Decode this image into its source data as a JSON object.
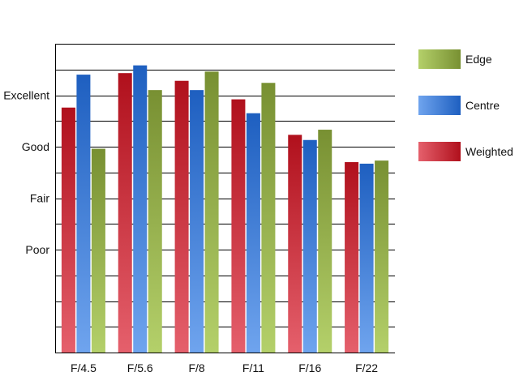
{
  "chart_data": {
    "type": "bar",
    "categories": [
      "F/4.5",
      "F/5.6",
      "F/8",
      "F/11",
      "F/16",
      "F/22"
    ],
    "series": [
      {
        "name": "Weighted",
        "values": [
          3.76,
          4.43,
          4.28,
          3.92,
          3.23,
          2.7
        ],
        "color_light": "#e5606c",
        "color_dark": "#b0101c"
      },
      {
        "name": "Centre",
        "values": [
          4.4,
          4.58,
          4.1,
          3.65,
          3.13,
          2.67
        ],
        "color_light": "#6fa4ee",
        "color_dark": "#1e5fc0"
      },
      {
        "name": "Edge",
        "values": [
          2.96,
          4.1,
          4.46,
          4.24,
          3.33,
          2.73
        ],
        "color_light": "#b4d06a",
        "color_dark": "#789032"
      }
    ],
    "y_ticks": [
      {
        "value": 1,
        "label": "Poor"
      },
      {
        "value": 2,
        "label": "Fair"
      },
      {
        "value": 3,
        "label": "Good"
      },
      {
        "value": 4,
        "label": "Excellent"
      }
    ],
    "ylim": [
      -1,
      5
    ],
    "grid": true,
    "legend_position": "right",
    "legend_order": [
      "Edge",
      "Centre",
      "Weighted"
    ]
  }
}
